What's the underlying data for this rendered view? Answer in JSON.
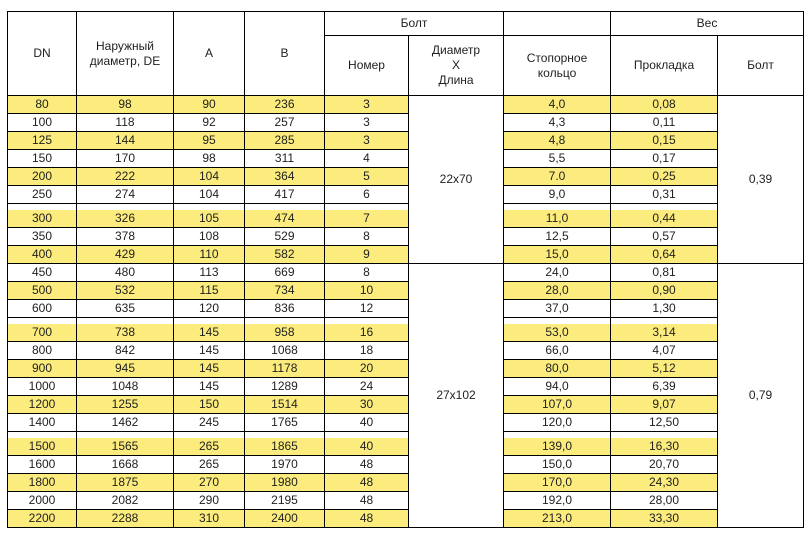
{
  "table": {
    "colors": {
      "highlight": "#fbec7d",
      "border": "#000000",
      "text": "#1f1f1f"
    },
    "header": {
      "dn": "DN",
      "outer_diameter": "Наружный\nдиаметр, DE",
      "a": "A",
      "b": "B",
      "bolt_group": "Болт",
      "bolt_number": "Номер",
      "bolt_dimension": "Диаметр\nХ\nДлина",
      "locking_ring": "Стопорное кольцо",
      "weight_group": "Вес",
      "gasket": "Прокладка",
      "bolt_weight": "Болт"
    },
    "spacer_after_dn": [
      "250",
      "600",
      "1400"
    ],
    "groups": [
      {
        "bolt_dimension": "22x70",
        "bolt_weight": "0,39",
        "rows": [
          {
            "dn": "80",
            "de": "98",
            "a": "90",
            "b": "236",
            "num": "3",
            "ring": "4,0",
            "gasket": "0,08",
            "hl": true
          },
          {
            "dn": "100",
            "de": "118",
            "a": "92",
            "b": "257",
            "num": "3",
            "ring": "4,3",
            "gasket": "0,11",
            "hl": false
          },
          {
            "dn": "125",
            "de": "144",
            "a": "95",
            "b": "285",
            "num": "3",
            "ring": "4,8",
            "gasket": "0,15",
            "hl": true
          },
          {
            "dn": "150",
            "de": "170",
            "a": "98",
            "b": "311",
            "num": "4",
            "ring": "5,5",
            "gasket": "0,17",
            "hl": false
          },
          {
            "dn": "200",
            "de": "222",
            "a": "104",
            "b": "364",
            "num": "5",
            "ring": "7.0",
            "gasket": "0,25",
            "hl": true
          },
          {
            "dn": "250",
            "de": "274",
            "a": "104",
            "b": "417",
            "num": "6",
            "ring": "9,0",
            "gasket": "0,31",
            "hl": false
          },
          {
            "dn": "300",
            "de": "326",
            "a": "105",
            "b": "474",
            "num": "7",
            "ring": "11,0",
            "gasket": "0,44",
            "hl": true
          },
          {
            "dn": "350",
            "de": "378",
            "a": "108",
            "b": "529",
            "num": "8",
            "ring": "12,5",
            "gasket": "0,57",
            "hl": false
          },
          {
            "dn": "400",
            "de": "429",
            "a": "110",
            "b": "582",
            "num": "9",
            "ring": "15,0",
            "gasket": "0,64",
            "hl": true
          }
        ]
      },
      {
        "bolt_dimension": "27x102",
        "bolt_weight": "0,79",
        "rows": [
          {
            "dn": "450",
            "de": "480",
            "a": "113",
            "b": "669",
            "num": "8",
            "ring": "24,0",
            "gasket": "0,81",
            "hl": false
          },
          {
            "dn": "500",
            "de": "532",
            "a": "115",
            "b": "734",
            "num": "10",
            "ring": "28,0",
            "gasket": "0,90",
            "hl": true
          },
          {
            "dn": "600",
            "de": "635",
            "a": "120",
            "b": "836",
            "num": "12",
            "ring": "37,0",
            "gasket": "1,30",
            "hl": false
          },
          {
            "dn": "700",
            "de": "738",
            "a": "145",
            "b": "958",
            "num": "16",
            "ring": "53,0",
            "gasket": "3,14",
            "hl": true
          },
          {
            "dn": "800",
            "de": "842",
            "a": "145",
            "b": "1068",
            "num": "18",
            "ring": "66,0",
            "gasket": "4,07",
            "hl": false
          },
          {
            "dn": "900",
            "de": "945",
            "a": "145",
            "b": "1178",
            "num": "20",
            "ring": "80,0",
            "gasket": "5,12",
            "hl": true
          },
          {
            "dn": "1000",
            "de": "1048",
            "a": "145",
            "b": "1289",
            "num": "24",
            "ring": "94,0",
            "gasket": "6,39",
            "hl": false
          },
          {
            "dn": "1200",
            "de": "1255",
            "a": "150",
            "b": "1514",
            "num": "30",
            "ring": "107,0",
            "gasket": "9,07",
            "hl": true
          },
          {
            "dn": "1400",
            "de": "1462",
            "a": "245",
            "b": "1765",
            "num": "40",
            "ring": "120,0",
            "gasket": "12,50",
            "hl": false
          },
          {
            "dn": "1500",
            "de": "1565",
            "a": "265",
            "b": "1865",
            "num": "40",
            "ring": "139,0",
            "gasket": "16,30",
            "hl": true
          },
          {
            "dn": "1600",
            "de": "1668",
            "a": "265",
            "b": "1970",
            "num": "48",
            "ring": "150,0",
            "gasket": "20,70",
            "hl": false
          },
          {
            "dn": "1800",
            "de": "1875",
            "a": "270",
            "b": "1980",
            "num": "48",
            "ring": "170,0",
            "gasket": "24,30",
            "hl": true
          },
          {
            "dn": "2000",
            "de": "2082",
            "a": "290",
            "b": "2195",
            "num": "48",
            "ring": "192,0",
            "gasket": "28,00",
            "hl": false
          },
          {
            "dn": "2200",
            "de": "2288",
            "a": "310",
            "b": "2400",
            "num": "48",
            "ring": "213,0",
            "gasket": "33,30",
            "hl": true
          }
        ]
      }
    ]
  }
}
